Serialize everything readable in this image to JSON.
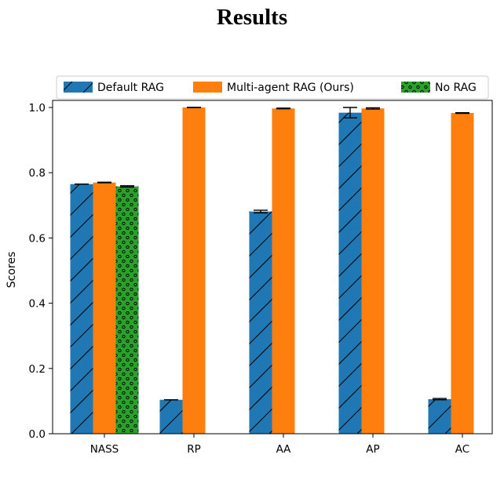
{
  "chart_data": {
    "type": "bar",
    "title": "Results",
    "xlabel": "",
    "ylabel": "Scores",
    "ylim": [
      0,
      1.0
    ],
    "yticks": [
      0.0,
      0.2,
      0.4,
      0.6,
      0.8,
      1.0
    ],
    "ytick_labels": [
      "0.0",
      "0.2",
      "0.4",
      "0.6",
      "0.8",
      "1.0"
    ],
    "categories": [
      "NASS",
      "RP",
      "AA",
      "AP",
      "AC"
    ],
    "legend_position": "top",
    "series": [
      {
        "name": "Default RAG",
        "color": "#1f77b4",
        "hatch": "diagonal",
        "values": [
          0.765,
          0.104,
          0.681,
          0.984,
          0.106
        ],
        "errors": [
          0.0,
          0.0,
          0.004,
          0.016,
          0.002
        ]
      },
      {
        "name": "Multi-agent RAG (Ours)",
        "color": "#ff7f0e",
        "hatch": "none",
        "values": [
          0.77,
          1.0,
          0.997,
          0.997,
          0.983
        ],
        "errors": [
          0.001,
          0.0,
          0.001,
          0.002,
          0.001
        ]
      },
      {
        "name": "No RAG",
        "color": "#2ca02c",
        "hatch": "dots",
        "values": [
          0.758,
          null,
          null,
          null,
          null
        ],
        "errors": [
          0.002,
          null,
          null,
          null,
          null
        ]
      }
    ]
  }
}
